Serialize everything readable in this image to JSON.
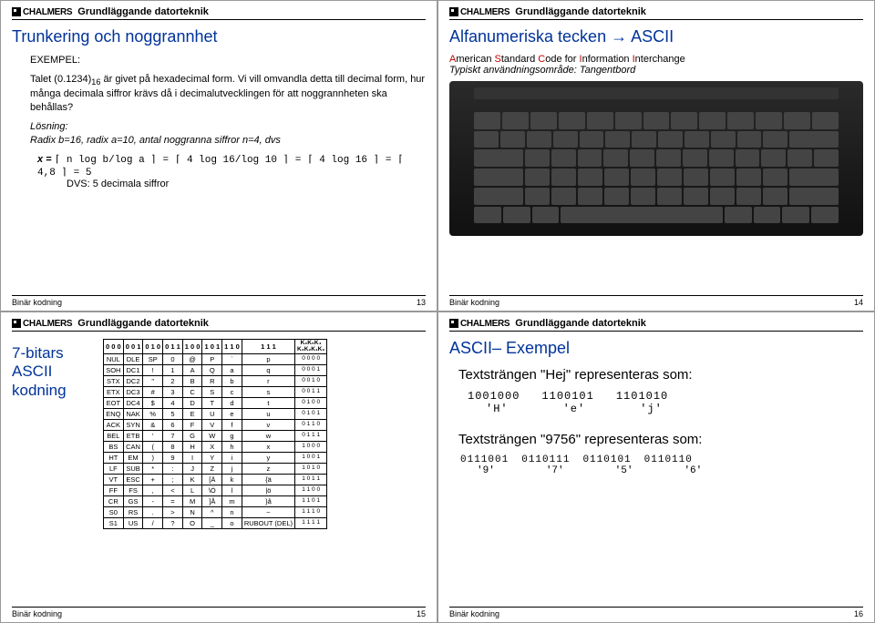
{
  "header": {
    "logo": "CHALMERS",
    "subtitle": "Grundläggande datorteknik"
  },
  "footer": {
    "label": "Binär kodning"
  },
  "slide1": {
    "num": "13",
    "title": "Trunkering och noggrannhet",
    "exempel_label": "EXEMPEL:",
    "p1a": "Talet (0.1234)",
    "p1b": " är givet på hexadecimal form.",
    "p1sub": "16",
    "p2": "Vi vill omvandla detta till decimal form, hur många decimala siffror krävs då i decimalutvecklingen för att noggrannheten ska behållas?",
    "losning_label": "Lösning:",
    "losning_text": "Radix b=16, radix a=10, antal noggranna siffror n=4, dvs",
    "formula_lhs": "x = ",
    "formula_body": "⌈ n log b/log a ⌉ = ⌈ 4 log 16/log 10 ⌉ = ⌈ 4 log 16 ⌉ = ⌈ 4,8 ⌉ = 5",
    "dvs": "DVS: 5 decimala siffror"
  },
  "slide2": {
    "num": "14",
    "title": "Alfanumeriska tecken → ASCII",
    "line1a": "A",
    "line1b": "merican ",
    "line1c": "S",
    "line1d": "tandard ",
    "line1e": "C",
    "line1f": "ode for ",
    "line1g": "I",
    "line1h": "nformation ",
    "line1i": "I",
    "line1j": "nterchange",
    "line2": "Typiskt användningsområde: Tangentbord"
  },
  "slide3": {
    "num": "15",
    "title": "7-bitars ASCII kodning",
    "top_headers": [
      "0 0 0",
      "0 0 1",
      "0 1 0",
      "0 1 1",
      "1 0 0",
      "1 0 1",
      "1 1 0",
      "1 1 1"
    ],
    "top_right_label": "K₆K₅K₄",
    "bottom_right_label": "K₃K₂K₁K₀",
    "rows": [
      [
        "NUL",
        "DLE",
        "SP",
        "0",
        "@",
        "P",
        "`",
        "p",
        "0 0 0 0"
      ],
      [
        "SOH",
        "DC1",
        "!",
        "1",
        "A",
        "Q",
        "a",
        "q",
        "0 0 0 1"
      ],
      [
        "STX",
        "DC2",
        "\"",
        "2",
        "B",
        "R",
        "b",
        "r",
        "0 0 1 0"
      ],
      [
        "ETX",
        "DC3",
        "#",
        "3",
        "C",
        "S",
        "c",
        "s",
        "0 0 1 1"
      ],
      [
        "EOT",
        "DC4",
        "$",
        "4",
        "D",
        "T",
        "d",
        "t",
        "0 1 0 0"
      ],
      [
        "ENQ",
        "NAK",
        "%",
        "5",
        "E",
        "U",
        "e",
        "u",
        "0 1 0 1"
      ],
      [
        "ACK",
        "SYN",
        "&",
        "6",
        "F",
        "V",
        "f",
        "v",
        "0 1 1 0"
      ],
      [
        "BEL",
        "ETB",
        "'",
        "7",
        "G",
        "W",
        "g",
        "w",
        "0 1 1 1"
      ],
      [
        "BS",
        "CAN",
        "(",
        "8",
        "H",
        "X",
        "h",
        "x",
        "1 0 0 0"
      ],
      [
        "HT",
        "EM",
        ")",
        "9",
        "I",
        "Y",
        "i",
        "y",
        "1 0 0 1"
      ],
      [
        "LF",
        "SUB",
        "*",
        ":",
        "J",
        "Z",
        "j",
        "z",
        "1 0 1 0"
      ],
      [
        "VT",
        "ESC",
        "+",
        ";",
        "K",
        "[Ä",
        "k",
        "{ä",
        "1 0 1 1"
      ],
      [
        "FF",
        "FS",
        ",",
        "<",
        "L",
        "\\Ö",
        "l",
        "|ö",
        "1 1 0 0"
      ],
      [
        "CR",
        "GS",
        "-",
        "=",
        "M",
        "]Å",
        "m",
        "}å",
        "1 1 0 1"
      ],
      [
        "S0",
        "RS",
        ".",
        ">",
        "N",
        "^",
        "n",
        "~",
        "1 1 1 0"
      ],
      [
        "S1",
        "US",
        "/",
        "?",
        "O",
        "_",
        "o",
        "RUBOUT (DEL)",
        "1 1 1 1"
      ]
    ]
  },
  "slide4": {
    "num": "16",
    "title": "ASCII– Exempel",
    "line1": "Textsträngen \"Hej\" representeras som:",
    "hej_bits": [
      "1001000",
      "1100101",
      "1101010"
    ],
    "hej_chars": [
      "'H'",
      "'e'",
      "'j'"
    ],
    "line2": "Textsträngen \"9756\" representeras som:",
    "num_bits": [
      "0111001",
      "0110111",
      "0110101",
      "0110110"
    ],
    "num_chars": [
      "'9'",
      "'7'",
      "'5'",
      "'6'"
    ]
  },
  "colors": {
    "title_blue": "#003399",
    "red": "#c00000",
    "black": "#000000",
    "bg": "#ffffff"
  }
}
